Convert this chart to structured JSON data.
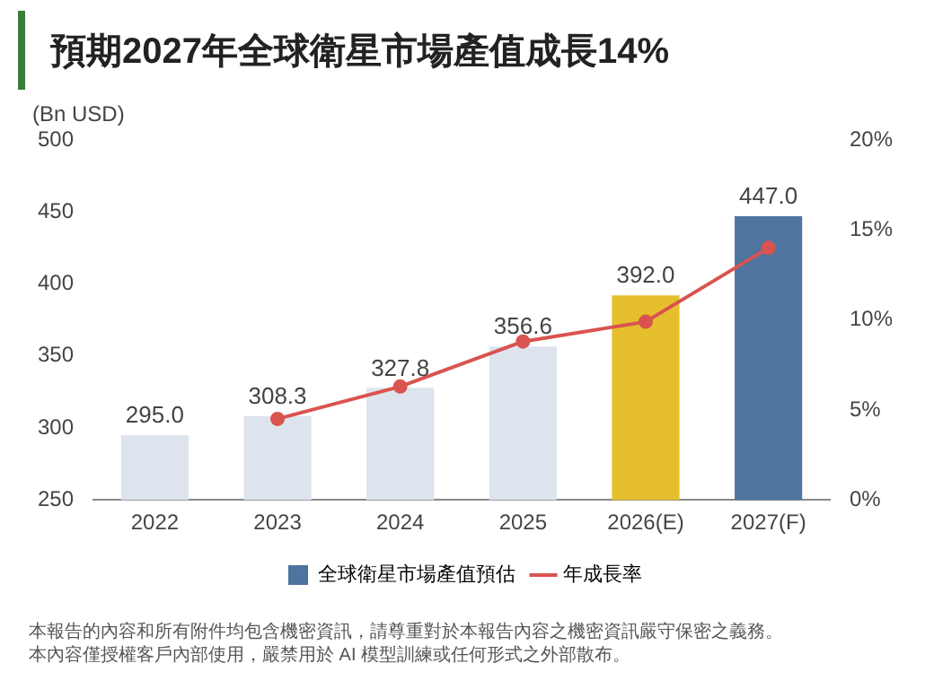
{
  "chart_data": {
    "type": "bar",
    "title": "預期2027年全球衛星市場產值成長14%",
    "ylabel": "(Bn USD)",
    "categories": [
      "2022",
      "2023",
      "2024",
      "2025",
      "2026(E)",
      "2027(F)"
    ],
    "series": [
      {
        "name": "全球衛星市場產值預估",
        "colors": [
          "#dde4ee",
          "#dde4ee",
          "#dde4ee",
          "#dde4ee",
          "#e6bf2e",
          "#4f74a0"
        ],
        "values": [
          295.0,
          308.3,
          327.8,
          356.6,
          392.0,
          447.0
        ],
        "value_labels": [
          "295.0",
          "308.3",
          "327.8",
          "356.6",
          "392.0",
          "447.0"
        ]
      },
      {
        "name": "年成長率",
        "type": "line",
        "axis": "y2",
        "color": "#d9534f",
        "marker": "circle",
        "values": [
          null,
          4.5,
          6.3,
          8.8,
          9.9,
          14.0
        ]
      }
    ],
    "ylim": [
      250,
      500
    ],
    "yticks": [
      250,
      300,
      350,
      400,
      450,
      500
    ],
    "y2lim": [
      0,
      20
    ],
    "y2ticks": [
      {
        "value": 0,
        "label": "0%"
      },
      {
        "value": 5,
        "label": "5%"
      },
      {
        "value": 10,
        "label": "10%"
      },
      {
        "value": 15,
        "label": "15%"
      },
      {
        "value": 20,
        "label": "20%"
      }
    ],
    "grid": false,
    "legend": "bottom",
    "annotations": [
      "本報告的內容和所有附件均包含機密資訊，請尊重對於本報告內容之機密資訊嚴守保密之義務。",
      "本內容僅授權客戶內部使用，嚴禁用於 AI 模型訓練或任何形式之外部散布。"
    ]
  }
}
